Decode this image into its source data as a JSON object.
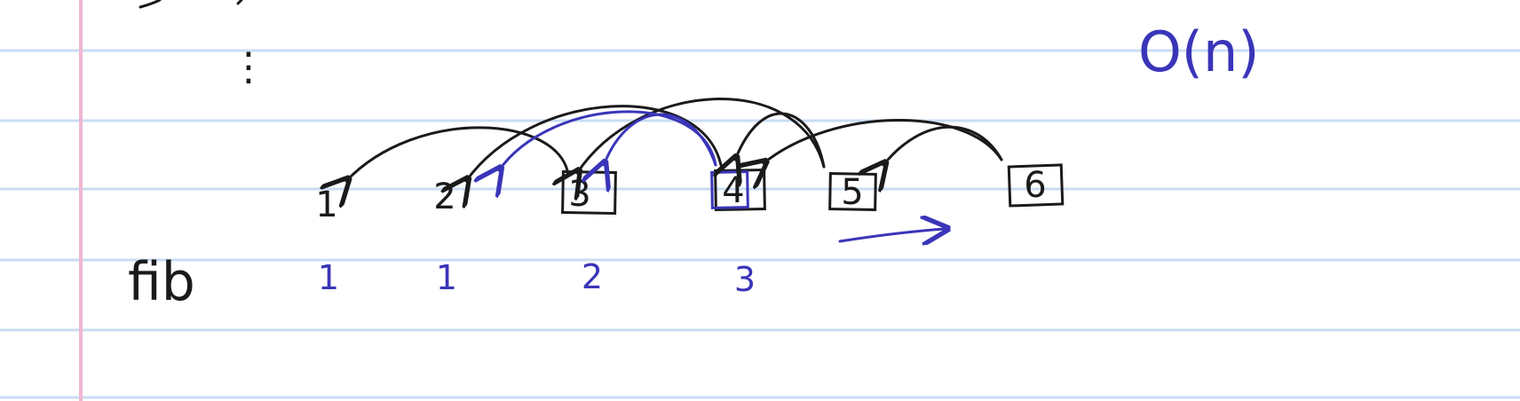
{
  "notation": "O(n)",
  "colors": {
    "paper": "#ffffff",
    "rule_line": "#c9dcf3",
    "margin_line": "#f0b6d2",
    "ink_black": "#1a1a1a",
    "ink_blue": "#3a35b8"
  },
  "nodes": [
    {
      "label": "1",
      "boxed": false
    },
    {
      "label": "2",
      "boxed": false
    },
    {
      "label": "3",
      "boxed": true
    },
    {
      "label": "4",
      "boxed": true
    },
    {
      "label": "5",
      "boxed": true
    },
    {
      "label": "6",
      "boxed": true
    }
  ],
  "fib_row": {
    "label": "fib",
    "values": [
      "1",
      "1",
      "2",
      "3"
    ]
  },
  "ellipsis": "⋮"
}
